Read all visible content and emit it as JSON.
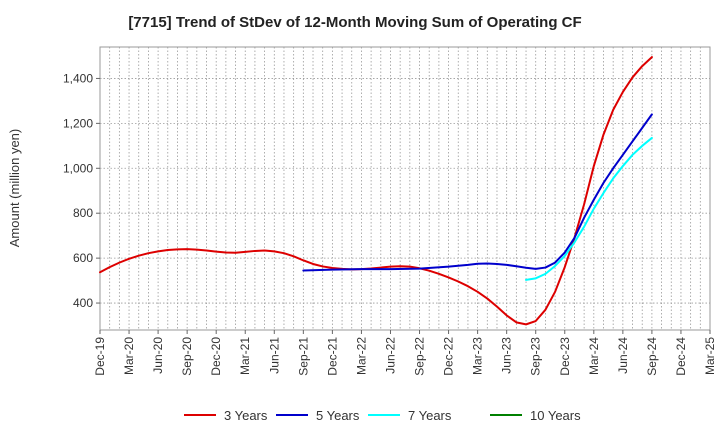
{
  "chart_data": {
    "type": "line",
    "title": "[7715]  Trend of StDev of 12-Month Moving Sum of Operating CF",
    "xlabel": "",
    "ylabel": "Amount (million yen)",
    "ylim": [
      280,
      1540
    ],
    "yticks": [
      400,
      600,
      800,
      1000,
      1200,
      1400
    ],
    "ytick_labels": [
      "400",
      "600",
      "800",
      "1,000",
      "1,200",
      "1,400"
    ],
    "xlim": [
      "Dec-19",
      "Mar-25"
    ],
    "xtick_labels": [
      "Dec-19",
      "Mar-20",
      "Jun-20",
      "Sep-20",
      "Dec-20",
      "Mar-21",
      "Jun-21",
      "Sep-21",
      "Dec-21",
      "Mar-22",
      "Jun-22",
      "Sep-22",
      "Dec-22",
      "Mar-23",
      "Jun-23",
      "Sep-23",
      "Dec-23",
      "Mar-24",
      "Jun-24",
      "Sep-24",
      "Dec-24",
      "Mar-25"
    ],
    "grid": true,
    "legend_position": "bottom",
    "series": [
      {
        "name": "3 Years",
        "color": "#dd0000",
        "points": [
          [
            "Dec-19",
            537
          ],
          [
            "Jan-20",
            560
          ],
          [
            "Feb-20",
            580
          ],
          [
            "Mar-20",
            597
          ],
          [
            "Apr-20",
            611
          ],
          [
            "May-20",
            622
          ],
          [
            "Jun-20",
            630
          ],
          [
            "Jul-20",
            636
          ],
          [
            "Aug-20",
            639
          ],
          [
            "Sep-20",
            640
          ],
          [
            "Oct-20",
            638
          ],
          [
            "Nov-20",
            634
          ],
          [
            "Dec-20",
            629
          ],
          [
            "Jan-21",
            625
          ],
          [
            "Feb-21",
            624
          ],
          [
            "Mar-21",
            628
          ],
          [
            "Apr-21",
            632
          ],
          [
            "May-21",
            634
          ],
          [
            "Jun-21",
            630
          ],
          [
            "Jul-21",
            622
          ],
          [
            "Aug-21",
            608
          ],
          [
            "Sep-21",
            590
          ],
          [
            "Oct-21",
            574
          ],
          [
            "Nov-21",
            563
          ],
          [
            "Dec-21",
            556
          ],
          [
            "Jan-22",
            552
          ],
          [
            "Feb-22",
            550
          ],
          [
            "Mar-22",
            551
          ],
          [
            "Apr-22",
            554
          ],
          [
            "May-22",
            558
          ],
          [
            "Jun-22",
            562
          ],
          [
            "Jul-22",
            564
          ],
          [
            "Aug-22",
            562
          ],
          [
            "Sep-22",
            555
          ],
          [
            "Oct-22",
            544
          ],
          [
            "Nov-22",
            530
          ],
          [
            "Dec-22",
            514
          ],
          [
            "Jan-23",
            496
          ],
          [
            "Feb-23",
            475
          ],
          [
            "Mar-23",
            450
          ],
          [
            "Apr-23",
            420
          ],
          [
            "May-23",
            384
          ],
          [
            "Jun-23",
            345
          ],
          [
            "Jul-23",
            314
          ],
          [
            "Aug-23",
            305
          ],
          [
            "Sep-23",
            320
          ],
          [
            "Oct-23",
            370
          ],
          [
            "Nov-23",
            450
          ],
          [
            "Dec-23",
            560
          ],
          [
            "Jan-24",
            690
          ],
          [
            "Feb-24",
            840
          ],
          [
            "Mar-24",
            1010
          ],
          [
            "Apr-24",
            1150
          ],
          [
            "May-24",
            1260
          ],
          [
            "Jun-24",
            1340
          ],
          [
            "Jul-24",
            1405
          ],
          [
            "Aug-24",
            1455
          ],
          [
            "Sep-24",
            1495
          ]
        ]
      },
      {
        "name": "5 Years",
        "color": "#0000cc",
        "points": [
          [
            "Sep-21",
            545
          ],
          [
            "Dec-21",
            549
          ],
          [
            "Mar-22",
            551
          ],
          [
            "Jun-22",
            551
          ],
          [
            "Sep-22",
            553
          ],
          [
            "Dec-22",
            562
          ],
          [
            "Feb-23",
            570
          ],
          [
            "Mar-23",
            575
          ],
          [
            "Apr-23",
            576
          ],
          [
            "May-23",
            574
          ],
          [
            "Jun-23",
            570
          ],
          [
            "Jul-23",
            564
          ],
          [
            "Aug-23",
            557
          ],
          [
            "Sep-23",
            552
          ],
          [
            "Oct-23",
            558
          ],
          [
            "Nov-23",
            580
          ],
          [
            "Dec-23",
            625
          ],
          [
            "Jan-24",
            690
          ],
          [
            "Feb-24",
            780
          ],
          [
            "Mar-24",
            860
          ],
          [
            "Apr-24",
            935
          ],
          [
            "May-24",
            1000
          ],
          [
            "Jun-24",
            1060
          ],
          [
            "Jul-24",
            1120
          ],
          [
            "Aug-24",
            1180
          ],
          [
            "Sep-24",
            1240
          ]
        ]
      },
      {
        "name": "7 Years",
        "color": "#00ffff",
        "points": [
          [
            "Aug-23",
            503
          ],
          [
            "Sep-23",
            510
          ],
          [
            "Oct-23",
            530
          ],
          [
            "Nov-23",
            565
          ],
          [
            "Dec-23",
            610
          ],
          [
            "Jan-24",
            670
          ],
          [
            "Feb-24",
            740
          ],
          [
            "Mar-24",
            820
          ],
          [
            "Apr-24",
            890
          ],
          [
            "May-24",
            955
          ],
          [
            "Jun-24",
            1010
          ],
          [
            "Jul-24",
            1060
          ],
          [
            "Aug-24",
            1100
          ],
          [
            "Sep-24",
            1135
          ]
        ]
      },
      {
        "name": "10 Years",
        "color": "#008000",
        "points": []
      }
    ]
  }
}
